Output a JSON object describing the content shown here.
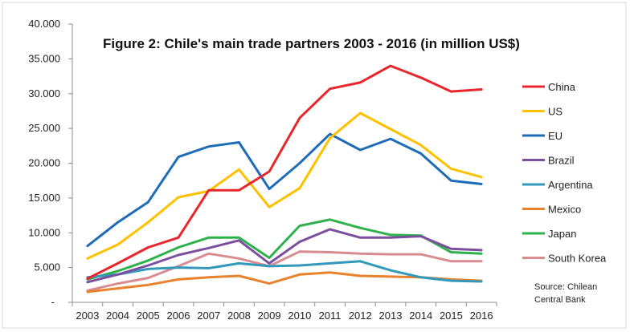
{
  "chart_data": {
    "type": "line",
    "title": "Figure 2: Chile's main trade partners 2003 - 2016  (in million US$)",
    "xlabel": "",
    "ylabel": "",
    "x": [
      "2003",
      "2004",
      "2005",
      "2006",
      "2007",
      "2008",
      "2009",
      "2010",
      "2011",
      "2012",
      "2013",
      "2014",
      "2015",
      "2016"
    ],
    "y_ticks": [
      "-",
      "5.000",
      "10.000",
      "15.000",
      "20.000",
      "25.000",
      "30.000",
      "35.000",
      "40.000"
    ],
    "ylim": [
      0,
      40000
    ],
    "grid": false,
    "legend_position": "right",
    "source": [
      "Source: Chilean",
      "Central Bank"
    ],
    "series": [
      {
        "name": "China",
        "color": "#e8262b",
        "values": [
          3400,
          5600,
          7900,
          9300,
          16100,
          16100,
          18800,
          26500,
          30700,
          31600,
          34000,
          32300,
          30300,
          30600
        ]
      },
      {
        "name": "US",
        "color": "#ffc000",
        "values": [
          6300,
          8300,
          11500,
          15100,
          16000,
          19100,
          13700,
          16400,
          23600,
          27200,
          24900,
          22600,
          19200,
          18000
        ]
      },
      {
        "name": "EU",
        "color": "#1e6bb8",
        "values": [
          8100,
          11500,
          14400,
          20900,
          22400,
          23000,
          16300,
          20000,
          24200,
          21900,
          23500,
          21400,
          17500,
          17000
        ]
      },
      {
        "name": "Brazil",
        "color": "#7b4f9e",
        "values": [
          2900,
          4000,
          5300,
          6800,
          7800,
          8900,
          5600,
          8700,
          10500,
          9300,
          9300,
          9500,
          7700,
          7500
        ]
      },
      {
        "name": "Argentina",
        "color": "#3399bb",
        "values": [
          3600,
          4000,
          4800,
          5000,
          4900,
          5600,
          5200,
          5300,
          5600,
          5900,
          4600,
          3600,
          3100,
          3000
        ]
      },
      {
        "name": "Mexico",
        "color": "#e8822c",
        "values": [
          1500,
          2000,
          2500,
          3300,
          3600,
          3800,
          2700,
          4000,
          4300,
          3800,
          3700,
          3600,
          3300,
          3100
        ]
      },
      {
        "name": "Japan",
        "color": "#2db24b",
        "values": [
          3300,
          4500,
          6000,
          7900,
          9300,
          9300,
          6400,
          11000,
          11900,
          10700,
          9700,
          9600,
          7200,
          7000
        ]
      },
      {
        "name": "South Korea",
        "color": "#d98c8f",
        "values": [
          1700,
          2700,
          3500,
          5200,
          7000,
          6300,
          5200,
          7300,
          7200,
          7000,
          6900,
          6900,
          5900,
          5900
        ]
      }
    ]
  }
}
